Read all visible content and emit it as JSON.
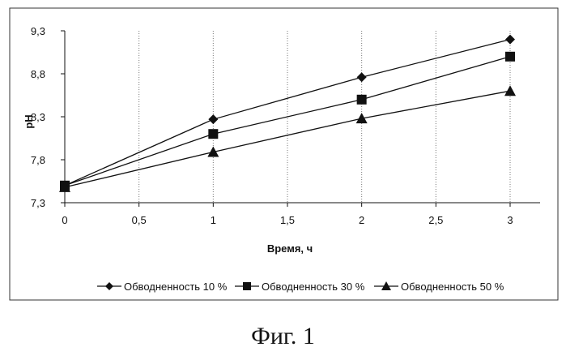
{
  "caption": "Фиг. 1",
  "chart_data": {
    "type": "line",
    "title": "",
    "xlabel": "Время, ч",
    "ylabel": "pH",
    "x": [
      0,
      1,
      2,
      3
    ],
    "xlim": [
      0,
      3
    ],
    "ylim": [
      7.3,
      9.3
    ],
    "xticks": [
      0,
      0.5,
      1,
      1.5,
      2,
      2.5,
      3
    ],
    "xtick_labels": [
      "0",
      "0,5",
      "1",
      "1,5",
      "2",
      "2,5",
      "3"
    ],
    "yticks": [
      7.3,
      7.8,
      8.3,
      8.8,
      9.3
    ],
    "ytick_labels": [
      "7,3",
      "7,8",
      "8,3",
      "8,8",
      "9,3"
    ],
    "grid": "vertical",
    "legend_position": "bottom",
    "series": [
      {
        "name": "Обводненность 10 %",
        "marker": "diamond",
        "values": [
          7.5,
          8.27,
          8.76,
          9.2
        ]
      },
      {
        "name": "Обводненность 30 %",
        "marker": "square",
        "values": [
          7.5,
          8.1,
          8.5,
          9.0
        ]
      },
      {
        "name": "Обводненность 50 %",
        "marker": "triangle",
        "values": [
          7.48,
          7.89,
          8.28,
          8.6
        ]
      }
    ]
  }
}
